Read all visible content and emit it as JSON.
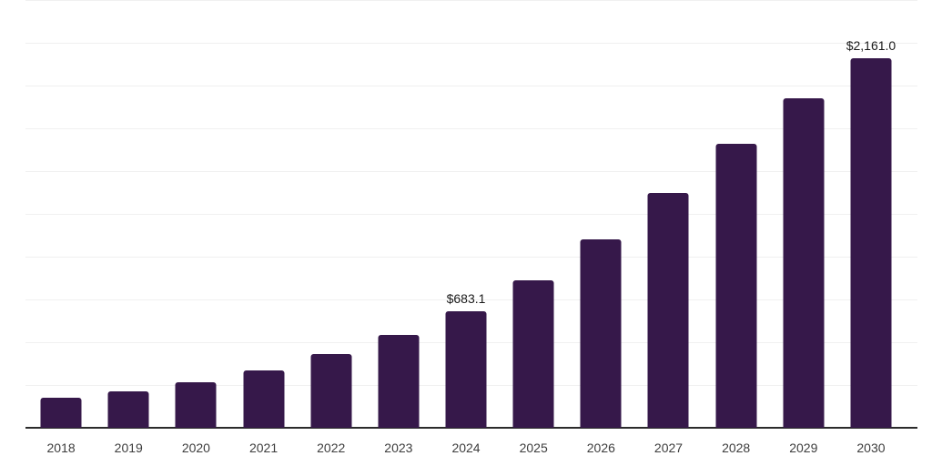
{
  "chart_data": {
    "type": "bar",
    "title": "",
    "xlabel": "",
    "ylabel": "",
    "categories": [
      "2018",
      "2019",
      "2020",
      "2021",
      "2022",
      "2023",
      "2024",
      "2025",
      "2026",
      "2027",
      "2028",
      "2029",
      "2030"
    ],
    "values": [
      177,
      213,
      266,
      334,
      429,
      541,
      683.1,
      860,
      1099,
      1372,
      1660,
      1927,
      2161
    ],
    "data_labels": {
      "2024": "$683.1",
      "2030": "$2,161.0"
    },
    "ylim": [
      0,
      2500
    ],
    "grid_step": 250,
    "grid": "on",
    "legend": "none",
    "colors": {
      "bar": "#36184A",
      "gridline": "#f0f0f0",
      "axis_line": "#2b2b2b",
      "tick_label": "#3d3d3d",
      "data_label": "#1a1a1a",
      "background": "#ffffff"
    }
  }
}
